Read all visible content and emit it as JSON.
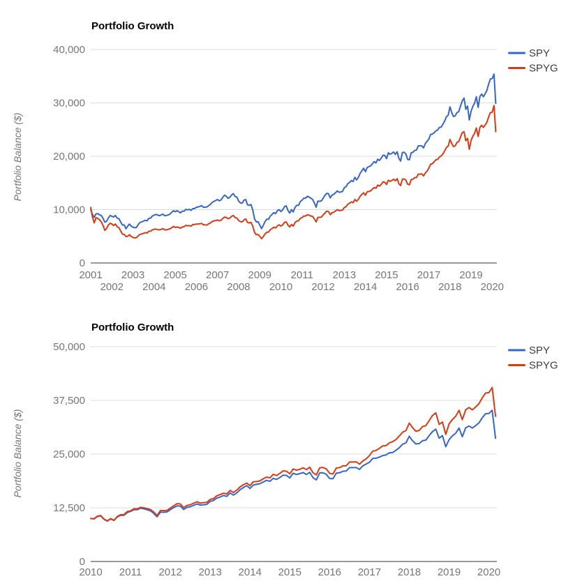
{
  "page": {
    "background": "#ffffff"
  },
  "colors": {
    "spy": "#3366cc",
    "spyg": "#dc3912",
    "gridline": "#dcdcdc",
    "baseline": "#333333",
    "tick_text": "#757575"
  },
  "chart_data": [
    {
      "type": "line",
      "title": "Portfolio Growth",
      "xlabel": "",
      "ylabel": "Portfolio Balance ($)",
      "legend_position": "right",
      "grid": true,
      "ylim": [
        0,
        40000
      ],
      "y_tick_values": [
        0,
        10000,
        20000,
        30000,
        40000
      ],
      "y_tick_labels": [
        "0",
        "10,000",
        "20,000",
        "30,000",
        "40,000"
      ],
      "x_range": [
        2001,
        2020.22
      ],
      "x_tick_rows": [
        [
          "2001",
          "2003",
          "2005",
          "2007",
          "2009",
          "2011",
          "2013",
          "2015",
          "2017",
          "2019"
        ],
        [
          "2002",
          "2004",
          "2006",
          "2008",
          "2010",
          "2012",
          "2014",
          "2016",
          "2018",
          "2020"
        ]
      ],
      "series": [
        {
          "name": "SPY",
          "color": "#3366cc",
          "start_year": 2001,
          "points_per_year": 12,
          "values": [
            10000,
            9100,
            8550,
            9200,
            9250,
            9000,
            8900,
            8350,
            7650,
            7800,
            8400,
            8900,
            8750,
            8600,
            8900,
            8400,
            8300,
            7700,
            7100,
            7150,
            6400,
            6900,
            7300,
            6900,
            6700,
            6600,
            6650,
            7200,
            7600,
            7700,
            7850,
            8000,
            7900,
            8350,
            8400,
            8800,
            8950,
            9100,
            9000,
            8850,
            9000,
            9150,
            8850,
            8900,
            9000,
            9150,
            9500,
            9800,
            9600,
            9800,
            9600,
            9400,
            9700,
            9700,
            10050,
            9950,
            10050,
            9850,
            10200,
            10200,
            10450,
            10500,
            10600,
            10750,
            10450,
            10450,
            10500,
            10750,
            11000,
            11350,
            11550,
            11700,
            11900,
            11650,
            11800,
            12300,
            12700,
            12500,
            12100,
            12300,
            12750,
            13000,
            12450,
            12350,
            11600,
            11250,
            11200,
            11750,
            11900,
            10900,
            10800,
            10950,
            9950,
            8300,
            7700,
            7750,
            7100,
            6450,
            7050,
            7750,
            8200,
            8200,
            8800,
            9100,
            9450,
            9250,
            9800,
            10000,
            9650,
            9950,
            10550,
            10700,
            9850,
            9350,
            10000,
            9550,
            10400,
            10800,
            10800,
            11500,
            11750,
            12150,
            12150,
            12500,
            12350,
            12150,
            11900,
            11250,
            10450,
            11600,
            11550,
            11650,
            12150,
            12650,
            13050,
            13000,
            12200,
            12700,
            12850,
            13150,
            13500,
            13250,
            13300,
            13400,
            14100,
            14300,
            14850,
            15100,
            15450,
            15250,
            16050,
            15550,
            16050,
            16800,
            17300,
            17750,
            17100,
            17900,
            18050,
            18200,
            18600,
            19000,
            18750,
            19450,
            19200,
            19650,
            20200,
            20150,
            19550,
            20650,
            20350,
            20550,
            20800,
            20350,
            20850,
            19600,
            19100,
            20700,
            20750,
            20400,
            19400,
            19350,
            20650,
            20750,
            21100,
            21150,
            21950,
            21950,
            21950,
            21550,
            22350,
            22800,
            23200,
            24100,
            24150,
            24400,
            24750,
            24900,
            25400,
            25450,
            26000,
            26600,
            27400,
            27700,
            29250,
            28200,
            27450,
            27550,
            28200,
            28350,
            29400,
            30350,
            30900,
            28800,
            29400,
            26800,
            28450,
            29350,
            29950,
            31150,
            29150,
            31200,
            31650,
            31150,
            31700,
            32350,
            33550,
            34500,
            34550,
            35400,
            29900
          ]
        },
        {
          "name": "SPYG",
          "color": "#dc3912",
          "start_year": 2001,
          "points_per_year": 12,
          "values": [
            10400,
            8600,
            7500,
            8500,
            8350,
            8100,
            7700,
            7000,
            6100,
            6450,
            7100,
            7450,
            7300,
            7000,
            7300,
            6800,
            6600,
            6000,
            5400,
            5350,
            4950,
            5000,
            5300,
            4950,
            4800,
            4700,
            4750,
            5100,
            5350,
            5450,
            5550,
            5700,
            5600,
            5950,
            5950,
            6200,
            6300,
            6350,
            6250,
            6200,
            6300,
            6450,
            6200,
            6200,
            6300,
            6400,
            6600,
            6850,
            6650,
            6750,
            6650,
            6500,
            6750,
            6800,
            7050,
            6950,
            7000,
            6900,
            7200,
            7200,
            7300,
            7300,
            7350,
            7400,
            7150,
            7150,
            7100,
            7350,
            7500,
            7750,
            7900,
            7950,
            8050,
            7900,
            8000,
            8350,
            8600,
            8500,
            8300,
            8400,
            8750,
            8900,
            8500,
            8400,
            7950,
            7750,
            7700,
            8050,
            8250,
            7600,
            7500,
            7600,
            6900,
            5750,
            5300,
            5350,
            5000,
            4550,
            4950,
            5450,
            5750,
            5800,
            6250,
            6450,
            6700,
            6550,
            6950,
            7150,
            6900,
            7150,
            7600,
            7700,
            7100,
            6750,
            7200,
            6900,
            7550,
            7850,
            7900,
            8350,
            8500,
            8800,
            8800,
            9050,
            8950,
            8800,
            8700,
            8250,
            7700,
            8550,
            8550,
            8600,
            9000,
            9350,
            9700,
            9650,
            9050,
            9400,
            9500,
            9750,
            10000,
            9800,
            9850,
            9900,
            10400,
            10550,
            11000,
            11200,
            11450,
            11300,
            11900,
            11550,
            11950,
            12500,
            12850,
            13150,
            12700,
            13350,
            13400,
            13500,
            13850,
            14150,
            14000,
            14600,
            14400,
            14750,
            15200,
            15100,
            14700,
            15500,
            15300,
            15450,
            15700,
            15400,
            15800,
            14850,
            14500,
            15700,
            15750,
            15500,
            14750,
            14650,
            15650,
            15700,
            16000,
            16000,
            16650,
            16650,
            16700,
            16300,
            16850,
            17200,
            17750,
            18500,
            18600,
            18950,
            19350,
            19400,
            19850,
            20050,
            20450,
            21000,
            21650,
            21900,
            23150,
            22400,
            21800,
            21950,
            22600,
            22750,
            23600,
            24450,
            24600,
            22900,
            23350,
            21300,
            23000,
            23750,
            24300,
            25300,
            23700,
            25400,
            25800,
            25400,
            25850,
            26400,
            27400,
            28200,
            28250,
            29500,
            24600
          ]
        }
      ]
    },
    {
      "type": "line",
      "title": "Portfolio Growth",
      "xlabel": "",
      "ylabel": "Portfolio Balance ($)",
      "legend_position": "right",
      "grid": true,
      "ylim": [
        0,
        50000
      ],
      "y_tick_values": [
        0,
        12500,
        25000,
        37500,
        50000
      ],
      "y_tick_labels": [
        "0",
        "12,500",
        "25,000",
        "37,500",
        "50,000"
      ],
      "x_range": [
        2010,
        2020.2
      ],
      "x_tick_rows": [
        [
          "2010",
          "2011",
          "2012",
          "2013",
          "2014",
          "2015",
          "2016",
          "2017",
          "2018",
          "2019",
          "2020"
        ]
      ],
      "series": [
        {
          "name": "SPY",
          "color": "#3366cc",
          "start_year": 2010,
          "points_per_year": 12,
          "values": [
            10000,
            9900,
            10450,
            10600,
            9800,
            9400,
            9900,
            9550,
            10350,
            10750,
            10750,
            11400,
            11650,
            12050,
            12050,
            12400,
            12250,
            12050,
            11800,
            11200,
            10400,
            11500,
            11450,
            11550,
            12050,
            12550,
            12950,
            12900,
            12100,
            12600,
            12750,
            13050,
            13400,
            13150,
            13200,
            13300,
            14000,
            14200,
            14750,
            15000,
            15350,
            15150,
            15950,
            15450,
            15950,
            16700,
            17200,
            17650,
            17000,
            17800,
            17950,
            18100,
            18500,
            18900,
            18650,
            19350,
            19100,
            19550,
            20100,
            20050,
            19450,
            20550,
            20250,
            20450,
            20700,
            20250,
            20750,
            19500,
            19000,
            20600,
            20650,
            20300,
            19300,
            19250,
            20550,
            20650,
            21000,
            21050,
            21850,
            21850,
            21850,
            21450,
            22250,
            22700,
            23100,
            24000,
            24050,
            24300,
            24650,
            24800,
            25300,
            25350,
            25900,
            26500,
            27300,
            27600,
            29150,
            28100,
            27350,
            27450,
            28100,
            28250,
            29300,
            30250,
            30800,
            28700,
            29300,
            26700,
            28350,
            29250,
            29850,
            31050,
            29050,
            31100,
            31550,
            31050,
            31600,
            32250,
            33450,
            34400,
            34450,
            35200,
            28700
          ]
        },
        {
          "name": "SPYG",
          "color": "#dc3912",
          "start_year": 2010,
          "points_per_year": 12,
          "values": [
            10000,
            9950,
            10550,
            10700,
            9850,
            9450,
            10000,
            9600,
            10450,
            10900,
            10900,
            11600,
            11800,
            12250,
            12250,
            12600,
            12500,
            12300,
            12100,
            11500,
            10700,
            11850,
            11850,
            11900,
            12450,
            12950,
            13450,
            13400,
            12550,
            13050,
            13200,
            13550,
            13900,
            13600,
            13700,
            13750,
            14450,
            14650,
            15300,
            15550,
            15900,
            15700,
            16550,
            16050,
            16600,
            17350,
            17850,
            18250,
            17650,
            18550,
            18600,
            18750,
            19250,
            19650,
            19450,
            20300,
            20000,
            20500,
            21100,
            21000,
            20400,
            21550,
            21250,
            21450,
            21800,
            21400,
            21950,
            20650,
            20150,
            21800,
            21900,
            21550,
            20500,
            20350,
            21750,
            21850,
            22250,
            22250,
            23150,
            23150,
            23200,
            22650,
            23400,
            23900,
            24650,
            25700,
            25850,
            26350,
            26900,
            26950,
            27600,
            27900,
            28400,
            29200,
            30100,
            30450,
            32200,
            31150,
            30300,
            30500,
            31400,
            31600,
            32800,
            34000,
            34600,
            31900,
            32450,
            29600,
            32000,
            33050,
            33800,
            35200,
            33000,
            35300,
            35850,
            35300,
            35950,
            36700,
            38100,
            39200,
            39300,
            40500,
            33800
          ]
        }
      ]
    }
  ]
}
